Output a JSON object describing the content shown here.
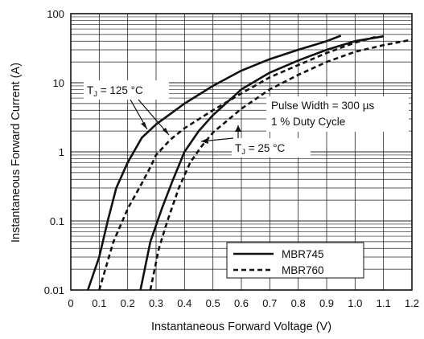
{
  "chart_data": {
    "type": "line",
    "xlabel": "Instantaneous Forward Voltage (V)",
    "ylabel": "Instantaneous Forward Current (A)",
    "xlim": [
      0,
      1.2
    ],
    "ylim": [
      0.01,
      100
    ],
    "y_scale": "log",
    "grid": true,
    "x_ticks": [
      "0",
      "0.1",
      "0.2",
      "0.3",
      "0.4",
      "0.5",
      "0.6",
      "0.7",
      "0.8",
      "0.9",
      "1.0",
      "1.1",
      "1.2"
    ],
    "y_ticks": [
      "0.01",
      "0.1",
      "1",
      "10",
      "100"
    ],
    "legend": {
      "position": "bottom-right",
      "entries": [
        {
          "name": "MBR745",
          "style": "solid"
        },
        {
          "name": "MBR760",
          "style": "dashed"
        }
      ]
    },
    "annotations": {
      "tj_high": {
        "prefix": "T",
        "sub": "J",
        "suffix": " = 125 °C"
      },
      "tj_low": {
        "prefix": "T",
        "sub": "J",
        "suffix": " = 25 °C"
      },
      "pulse_line1": "Pulse Width = 300 µs",
      "pulse_line2": "1 % Duty Cycle"
    },
    "series": [
      {
        "name": "MBR745",
        "condition": "TJ = 125 °C",
        "style": "solid",
        "x": [
          0.06,
          0.1,
          0.13,
          0.16,
          0.2,
          0.25,
          0.3,
          0.4,
          0.5,
          0.6,
          0.7,
          0.8,
          0.9,
          0.95
        ],
        "y": [
          0.01,
          0.03,
          0.1,
          0.3,
          0.7,
          1.6,
          2.5,
          5.0,
          9.0,
          15,
          22,
          30,
          40,
          48
        ]
      },
      {
        "name": "MBR760",
        "condition": "TJ = 125 °C",
        "style": "dashed",
        "x": [
          0.1,
          0.15,
          0.2,
          0.25,
          0.28,
          0.3,
          0.35,
          0.4,
          0.5,
          0.6,
          0.7,
          0.8,
          0.9,
          1.0,
          1.08
        ],
        "y": [
          0.01,
          0.05,
          0.15,
          0.35,
          0.6,
          0.9,
          1.5,
          2.2,
          4.0,
          7.0,
          12,
          18,
          27,
          38,
          47
        ]
      },
      {
        "name": "MBR745",
        "condition": "TJ = 25 °C",
        "style": "solid",
        "x": [
          0.245,
          0.28,
          0.32,
          0.36,
          0.4,
          0.45,
          0.5,
          0.6,
          0.7,
          0.8,
          0.9,
          1.0,
          1.1
        ],
        "y": [
          0.01,
          0.05,
          0.15,
          0.4,
          1.0,
          2.0,
          3.4,
          8.0,
          14,
          21,
          30,
          40,
          47
        ]
      },
      {
        "name": "MBR760",
        "condition": "TJ = 25 °C",
        "style": "dashed",
        "x": [
          0.28,
          0.31,
          0.34,
          0.38,
          0.42,
          0.46,
          0.5,
          0.6,
          0.7,
          0.8,
          0.9,
          1.0,
          1.1,
          1.2
        ],
        "y": [
          0.01,
          0.04,
          0.1,
          0.3,
          0.7,
          1.2,
          1.9,
          4.2,
          8.0,
          13,
          20,
          28,
          35,
          42
        ]
      }
    ]
  }
}
